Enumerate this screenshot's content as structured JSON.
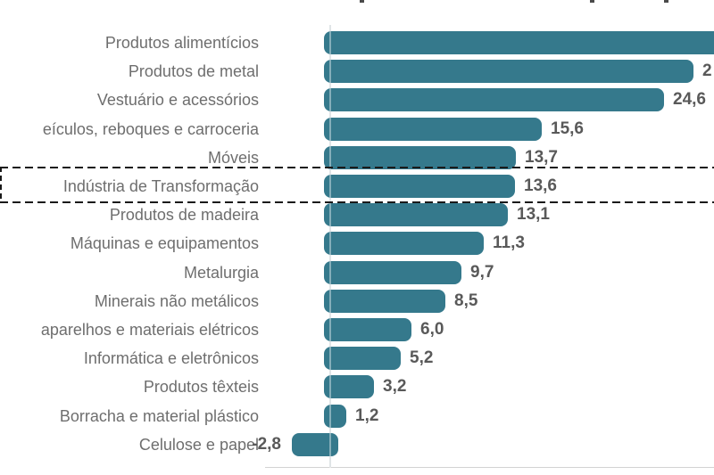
{
  "chart_data": {
    "type": "bar",
    "orientation": "horizontal",
    "title": "",
    "note": "title line cropped at top of screenshot; first bar and second value label clipped at right edge; some category labels clipped at left edge",
    "decimal_style": "comma",
    "zero_line": true,
    "bars": [
      {
        "label": "Produtos alimentícios",
        "value": 31.0,
        "value_label": "",
        "clipped_bar": true,
        "highlighted": false
      },
      {
        "label": "Produtos de metal",
        "value": 26.8,
        "value_label": "2",
        "value_label_clipped": true,
        "highlighted": false
      },
      {
        "label": "Vestuário e acessórios",
        "value": 24.6,
        "value_label": "24,6",
        "highlighted": false
      },
      {
        "label": "eículos, reboques e carroceria",
        "value": 15.6,
        "value_label": "15,6",
        "label_clipped_left": true,
        "highlighted": false
      },
      {
        "label": "Móveis",
        "value": 13.7,
        "value_label": "13,7",
        "highlighted": false
      },
      {
        "label": "Indústria de Transformação",
        "value": 13.6,
        "value_label": "13,6",
        "highlighted": true
      },
      {
        "label": "Produtos de madeira",
        "value": 13.1,
        "value_label": "13,1",
        "highlighted": false
      },
      {
        "label": "Máquinas e equipamentos",
        "value": 11.3,
        "value_label": "11,3",
        "highlighted": false
      },
      {
        "label": "Metalurgia",
        "value": 9.7,
        "value_label": "9,7",
        "highlighted": false
      },
      {
        "label": "Minerais não metálicos",
        "value": 8.5,
        "value_label": "8,5",
        "highlighted": false
      },
      {
        "label": "aparelhos e materiais elétricos",
        "value": 6.0,
        "value_label": "6,0",
        "label_clipped_left": true,
        "highlighted": false
      },
      {
        "label": "Informática e eletrônicos",
        "value": 5.2,
        "value_label": "5,2",
        "highlighted": false
      },
      {
        "label": "Produtos têxteis",
        "value": 3.2,
        "value_label": "3,2",
        "highlighted": false
      },
      {
        "label": "Borracha e material plástico",
        "value": 1.2,
        "value_label": "1,2",
        "highlighted": false
      },
      {
        "label": "Celulose e papel",
        "value": -2.8,
        "value_label": "-2,8",
        "highlighted": false
      }
    ],
    "colors": {
      "bar": "#35798C",
      "category_text": "#6E6E6E",
      "value_text": "#595959",
      "highlight_dash": "#1A1A1A",
      "zero_line": "#CCD4D8",
      "baseline": "#D3D3D3"
    },
    "legend_position": "none",
    "grid": false
  }
}
